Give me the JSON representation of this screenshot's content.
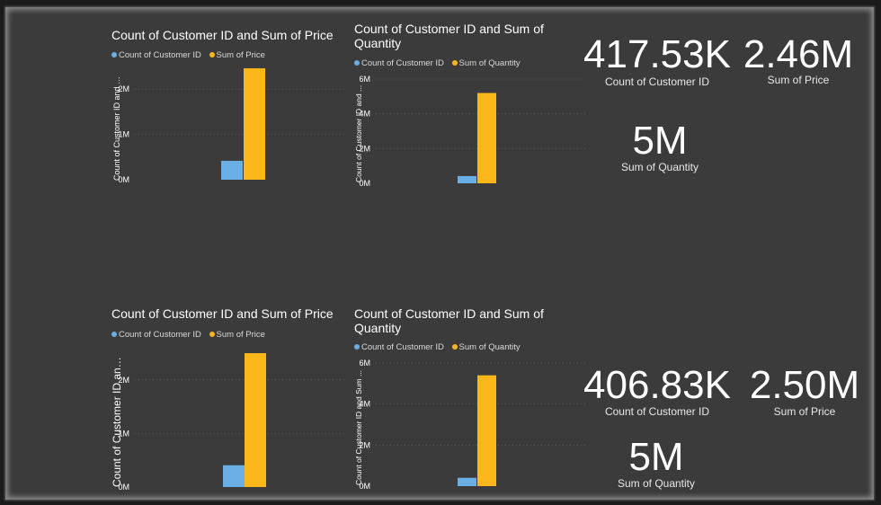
{
  "colors": {
    "background": "#3b3b3b",
    "count_series": "#6aaee6",
    "sum_series": "#fbb61a",
    "gridline": "#5a5a5a",
    "text": "#ffffff"
  },
  "chart_data": [
    {
      "type": "bar",
      "title": "Count of Customer ID and Sum of Price",
      "legend": [
        "Count of Customer ID",
        "Sum of Price"
      ],
      "ylabel": "Count of Customer ID and S...",
      "xlabel": "",
      "yticks": [
        "0M",
        "1M",
        "2M"
      ],
      "ylim": [
        0,
        2.5
      ],
      "series": [
        {
          "name": "Count of Customer ID",
          "values": [
            0.41753
          ]
        },
        {
          "name": "Sum of Price",
          "values": [
            2.46
          ]
        }
      ],
      "legend_position": "top-left",
      "grid": true
    },
    {
      "type": "bar",
      "title": "Count of Customer ID and Sum of Quantity",
      "legend": [
        "Count of Customer ID",
        "Sum of Quantity"
      ],
      "ylabel": "Count of Customer ID and ...",
      "xlabel": "",
      "yticks": [
        "0M",
        "2M",
        "4M",
        "6M"
      ],
      "ylim": [
        0,
        6
      ],
      "series": [
        {
          "name": "Count of Customer ID",
          "values": [
            0.41753
          ]
        },
        {
          "name": "Sum of Quantity",
          "values": [
            5.2
          ]
        }
      ],
      "legend_position": "top-left",
      "grid": true
    },
    {
      "type": "bar",
      "title": "Count of Customer ID and Sum of Price",
      "legend": [
        "Count of Customer ID",
        "Sum of Price"
      ],
      "ylabel": "Count of Customer ID and...",
      "xlabel": "",
      "yticks": [
        "0M",
        "1M",
        "2M"
      ],
      "ylim": [
        0,
        2.5
      ],
      "series": [
        {
          "name": "Count of Customer ID",
          "values": [
            0.40683
          ]
        },
        {
          "name": "Sum of Price",
          "values": [
            2.5
          ]
        }
      ],
      "legend_position": "top-left",
      "grid": true
    },
    {
      "type": "bar",
      "title": "Count of Customer ID and Sum of Quantity",
      "legend": [
        "Count of Customer ID",
        "Sum of Quantity"
      ],
      "ylabel": "Count of Customer ID and Sum ...",
      "xlabel": "",
      "yticks": [
        "0M",
        "2M",
        "4M",
        "6M"
      ],
      "ylim": [
        0,
        6
      ],
      "series": [
        {
          "name": "Count of Customer ID",
          "values": [
            0.40683
          ]
        },
        {
          "name": "Sum of Quantity",
          "values": [
            5.4
          ]
        }
      ],
      "legend_position": "top-left",
      "grid": true
    }
  ],
  "cards": [
    {
      "value": "417.53K",
      "label": "Count of Customer ID"
    },
    {
      "value": "2.46M",
      "label": "Sum of Price"
    },
    {
      "value": "5M",
      "label": "Sum of Quantity"
    },
    {
      "value": "406.83K",
      "label": "Count of Customer ID"
    },
    {
      "value": "2.50M",
      "label": "Sum of Price"
    },
    {
      "value": "5M",
      "label": "Sum of Quantity"
    }
  ]
}
